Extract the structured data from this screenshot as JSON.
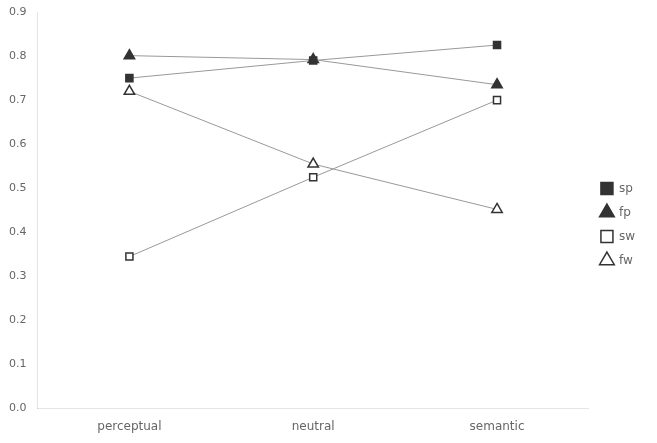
{
  "chart_data": {
    "type": "line",
    "categories": [
      "perceptual",
      "neutral",
      "semantic"
    ],
    "series": [
      {
        "name": "sp",
        "color": "#333333",
        "marker": "square",
        "values": [
          0.75,
          0.79,
          0.825
        ]
      },
      {
        "name": "fp",
        "color": "#333333",
        "marker": "triangle",
        "values": [
          0.801,
          0.792,
          0.735
        ]
      },
      {
        "name": "sw",
        "color": "#333333",
        "marker": "square-open",
        "values": [
          0.345,
          0.525,
          0.7
        ]
      },
      {
        "name": "fw",
        "color": "#333333",
        "marker": "triangle-open",
        "values": [
          0.72,
          0.555,
          0.452
        ]
      }
    ],
    "ylim": [
      0.0,
      0.9
    ],
    "yticks": [
      {
        "value": 0,
        "label": "0.0"
      },
      0.1,
      0.2,
      0.3,
      0.4,
      0.5,
      0.6,
      0.7,
      0.8,
      0.9
    ],
    "grid": false,
    "legend": "right"
  }
}
